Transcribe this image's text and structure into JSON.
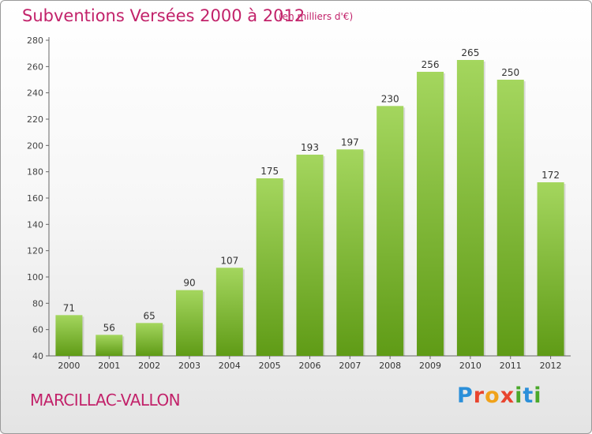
{
  "chart_data": {
    "type": "bar",
    "title": "Subventions Versées 2000 à 2012",
    "unit_note": "(en milliers d'€)",
    "categories": [
      "2000",
      "2001",
      "2002",
      "2003",
      "2004",
      "2005",
      "2006",
      "2007",
      "2008",
      "2009",
      "2010",
      "2011",
      "2012"
    ],
    "values": [
      71,
      56,
      65,
      90,
      107,
      175,
      193,
      197,
      230,
      256,
      265,
      250,
      172
    ],
    "data_labels": [
      "71",
      "56",
      "65",
      "90",
      "107",
      "175",
      "193",
      "197",
      "230",
      "256",
      "265",
      "250",
      "172"
    ],
    "ylim": [
      40,
      280
    ],
    "yticks": [
      "40",
      "60",
      "80",
      "100",
      "120",
      "140",
      "160",
      "180",
      "200",
      "220",
      "240",
      "260",
      "280"
    ],
    "xlabel": "",
    "ylabel": "",
    "grid": false,
    "bar_color_top": "#a4d65e",
    "bar_color_bottom": "#5f9b16"
  },
  "commune": "MARCILLAC-VALLON",
  "logo_text": "Proxiti",
  "colors": {
    "title": "#c2226a",
    "axis": "#555555"
  }
}
